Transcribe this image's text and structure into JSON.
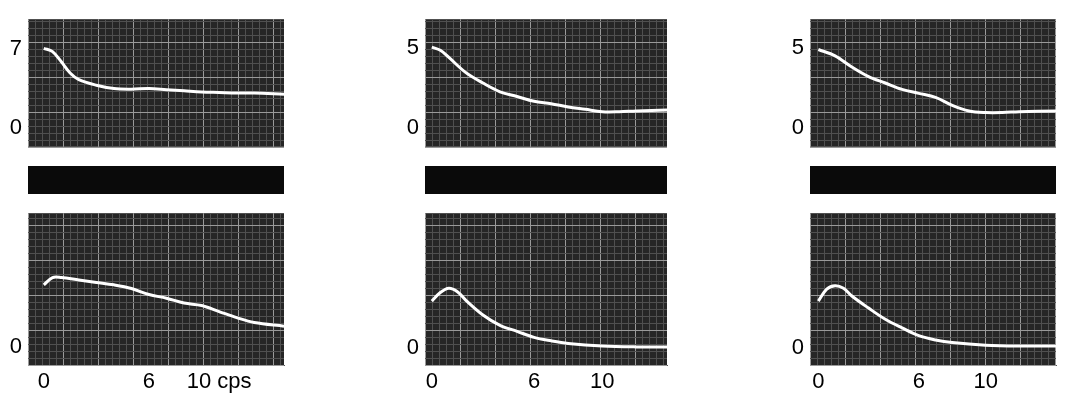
{
  "chart_data": [
    {
      "type": "line",
      "color": "#ffffff",
      "grid": true,
      "tick_labels": "y",
      "xlim": [
        -0.9,
        13.7
      ],
      "ylim": [
        -1.7,
        9.7
      ],
      "yticks": [
        0,
        7
      ],
      "x": [
        0,
        0.5,
        1,
        1.5,
        2,
        3,
        4,
        5,
        6,
        7,
        8,
        9,
        10,
        11,
        12,
        13.7
      ],
      "values": [
        7.1,
        6.8,
        5.9,
        4.9,
        4.3,
        3.8,
        3.5,
        3.45,
        3.5,
        3.4,
        3.3,
        3.2,
        3.15,
        3.1,
        3.1,
        3.0
      ]
    },
    {
      "type": "line",
      "color": "#ffffff",
      "grid": true,
      "tick_labels": true,
      "xlim": [
        -0.9,
        13.7
      ],
      "ylim": [
        -1.5,
        11.0
      ],
      "yticks": [
        0
      ],
      "xticks": [
        0,
        6,
        {
          "value": 10,
          "label": "10 cps"
        }
      ],
      "x": [
        0,
        0.5,
        1,
        2,
        3,
        4,
        5,
        6,
        7,
        8,
        9,
        10,
        11,
        12,
        13.7
      ],
      "values": [
        5.1,
        5.7,
        5.7,
        5.5,
        5.3,
        5.1,
        4.8,
        4.3,
        4.0,
        3.6,
        3.4,
        2.9,
        2.4,
        2.0,
        1.7
      ]
    },
    {
      "type": "line",
      "color": "#ffffff",
      "grid": true,
      "tick_labels": "y",
      "xlim": [
        -0.4,
        13.8
      ],
      "ylim": [
        -1.2,
        6.8
      ],
      "yticks": [
        0,
        5
      ],
      "x": [
        0,
        0.5,
        1,
        2,
        3,
        4,
        5,
        6,
        7,
        8,
        9,
        10,
        11,
        12,
        13.8
      ],
      "values": [
        5.05,
        4.85,
        4.4,
        3.45,
        2.8,
        2.25,
        1.95,
        1.65,
        1.5,
        1.3,
        1.15,
        1.0,
        1.0,
        1.05,
        1.1
      ]
    },
    {
      "type": "line",
      "color": "#ffffff",
      "grid": true,
      "tick_labels": true,
      "xlim": [
        -0.4,
        13.8
      ],
      "ylim": [
        -1.0,
        7.8
      ],
      "yticks": [
        0
      ],
      "xticks": [
        0,
        6,
        10
      ],
      "x": [
        0,
        0.5,
        1,
        1.5,
        2,
        3,
        4,
        5,
        6,
        7,
        8,
        10,
        12,
        13.8
      ],
      "values": [
        2.7,
        3.2,
        3.45,
        3.25,
        2.75,
        1.9,
        1.3,
        0.95,
        0.6,
        0.4,
        0.25,
        0.1,
        0.05,
        0.05
      ]
    },
    {
      "type": "line",
      "color": "#ffffff",
      "grid": true,
      "tick_labels": "y",
      "xlim": [
        -0.5,
        14.2
      ],
      "ylim": [
        -1.2,
        6.8
      ],
      "yticks": [
        0,
        5
      ],
      "x": [
        0,
        1,
        2,
        3,
        4,
        5,
        6,
        7,
        8,
        9,
        10,
        11,
        12,
        14.2
      ],
      "values": [
        4.9,
        4.5,
        3.8,
        3.2,
        2.8,
        2.4,
        2.15,
        1.9,
        1.4,
        1.05,
        0.95,
        0.95,
        1.0,
        1.05
      ]
    },
    {
      "type": "line",
      "color": "#ffffff",
      "grid": true,
      "tick_labels": true,
      "xlim": [
        -0.5,
        14.2
      ],
      "ylim": [
        -1.0,
        7.8
      ],
      "yticks": [
        0
      ],
      "xticks": [
        0,
        6,
        10
      ],
      "x": [
        0,
        0.5,
        1,
        1.5,
        2,
        3,
        4,
        5,
        6,
        7,
        8,
        10,
        12,
        14.2
      ],
      "values": [
        2.7,
        3.4,
        3.6,
        3.45,
        3.0,
        2.3,
        1.65,
        1.15,
        0.7,
        0.45,
        0.3,
        0.15,
        0.1,
        0.1
      ]
    }
  ]
}
